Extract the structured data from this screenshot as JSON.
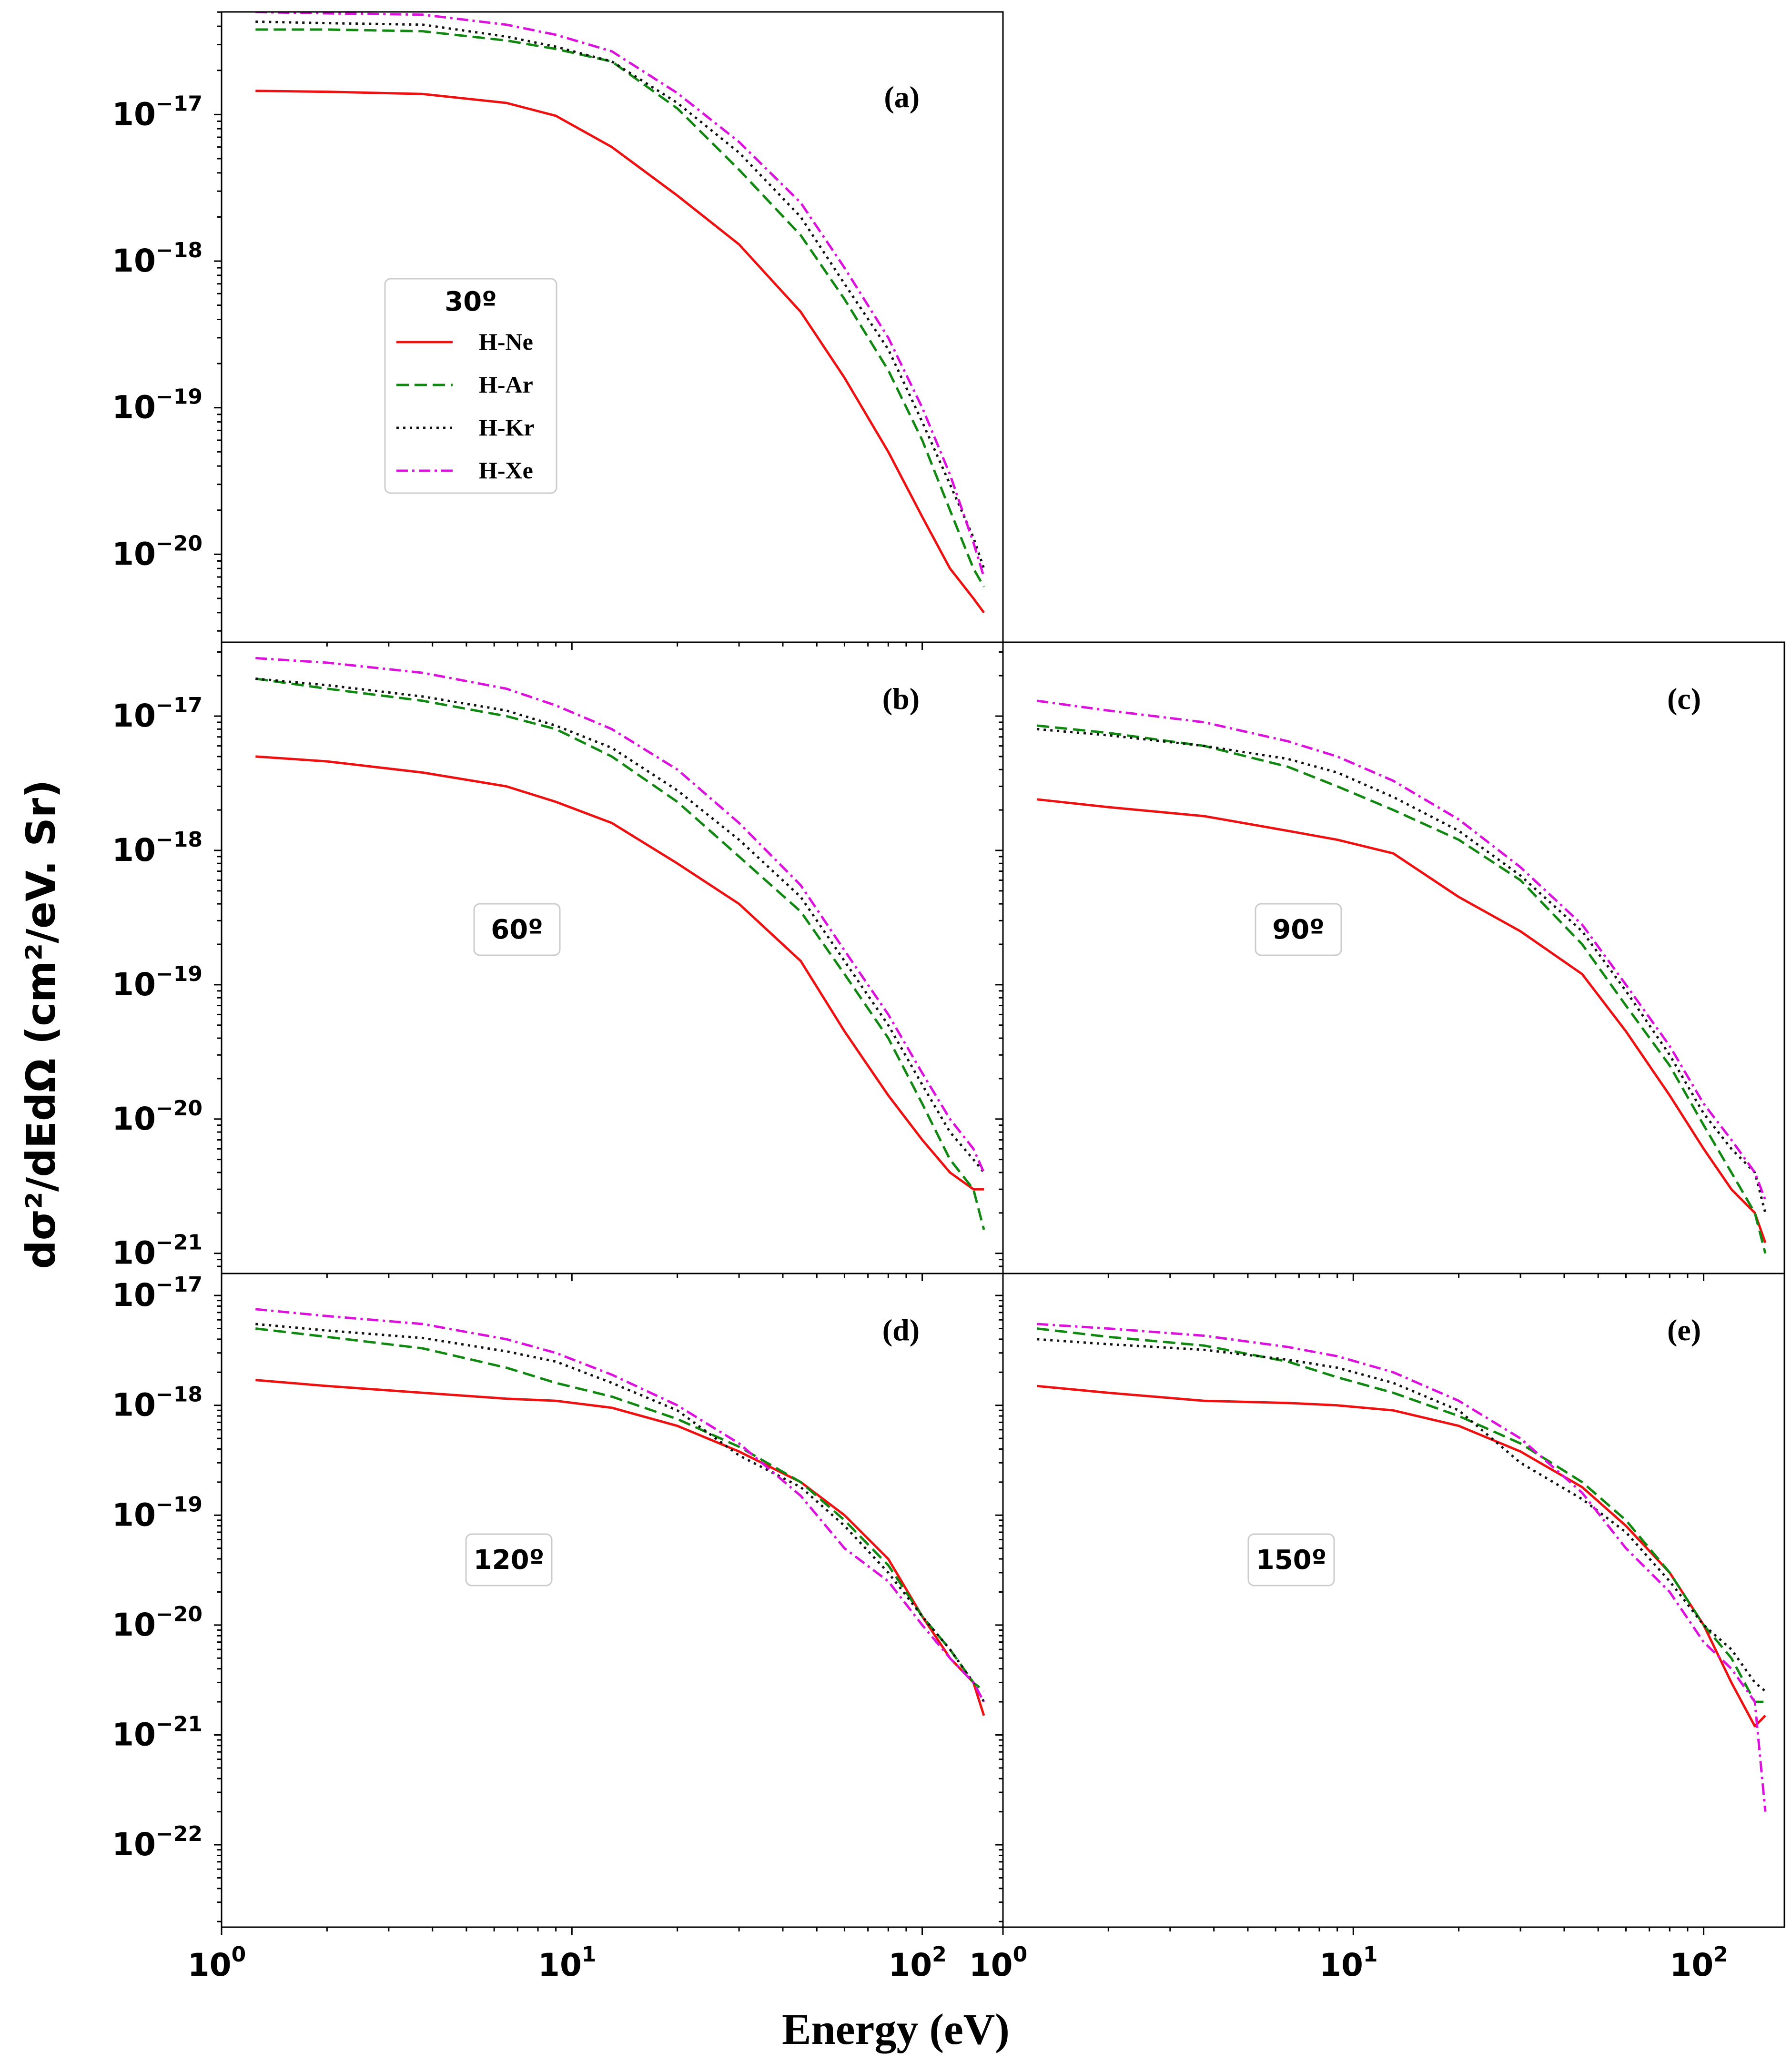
{
  "chart_data": {
    "type": "line",
    "ylabel": "dσ²/dEdΩ (cm²/eV. Sr)",
    "xlabel": "Energy (eV)",
    "xscale": "log",
    "yscale": "log",
    "xlim": [
      1,
      170
    ],
    "x_tick_labels": [
      {
        "base": "10",
        "exp": "0"
      },
      {
        "base": "10",
        "exp": "1"
      },
      {
        "base": "10",
        "exp": "2"
      }
    ],
    "legend": {
      "title": "30º",
      "entries": [
        "H-Ne",
        "H-Ar",
        "H-Kr",
        "H-Xe"
      ]
    },
    "series_styles": [
      {
        "name": "H-Ne",
        "color": "#ee1111",
        "dash": "solid"
      },
      {
        "name": "H-Ar",
        "color": "#118811",
        "dash": "dashed"
      },
      {
        "name": "H-Kr",
        "color": "#111111",
        "dash": "dotted"
      },
      {
        "name": "H-Xe",
        "color": "#dd11dd",
        "dash": "dashdot"
      }
    ],
    "x": [
      1.25,
      2,
      3.75,
      6.5,
      9,
      13,
      20,
      30,
      45,
      60,
      80,
      100,
      120,
      140,
      150
    ],
    "panels": [
      {
        "id": "a",
        "label": "(a)",
        "angle": "30º",
        "ylim_exp": [
          -20.6,
          -16.3
        ],
        "y_tick_labels": [
          {
            "base": "10",
            "exp": "−17"
          },
          {
            "base": "10",
            "exp": "−18"
          },
          {
            "base": "10",
            "exp": "−19"
          },
          {
            "base": "10",
            "exp": "−20"
          }
        ],
        "series": [
          {
            "name": "H-Ne",
            "values": [
              1.45e-17,
              1.43e-17,
              1.38e-17,
              1.2e-17,
              9.8e-18,
              6e-18,
              2.8e-18,
              1.3e-18,
              4.5e-19,
              1.6e-19,
              5e-20,
              1.8e-20,
              8e-21,
              5e-21,
              4e-21
            ]
          },
          {
            "name": "H-Ar",
            "values": [
              3.8e-17,
              3.8e-17,
              3.7e-17,
              3.2e-17,
              2.8e-17,
              2.3e-17,
              1.1e-17,
              4.2e-18,
              1.5e-18,
              5.5e-19,
              1.8e-19,
              6e-20,
              2e-20,
              8e-21,
              6e-21
            ]
          },
          {
            "name": "H-Kr",
            "values": [
              4.3e-17,
              4.2e-17,
              4.1e-17,
              3.4e-17,
              2.9e-17,
              2.3e-17,
              1.2e-17,
              5.5e-18,
              2e-18,
              7e-19,
              2.5e-19,
              8e-20,
              3e-20,
              1.3e-20,
              8e-21
            ]
          },
          {
            "name": "H-Xe",
            "values": [
              5e-17,
              4.9e-17,
              4.8e-17,
              4.1e-17,
              3.5e-17,
              2.7e-17,
              1.4e-17,
              6.5e-18,
              2.5e-18,
              9e-19,
              3e-19,
              1e-19,
              3.5e-20,
              1.2e-20,
              7e-21
            ]
          }
        ]
      },
      {
        "id": "b",
        "label": "(b)",
        "angle": "60º",
        "ylim_exp": [
          -21.15,
          -16.45
        ],
        "y_tick_labels": [
          {
            "base": "10",
            "exp": "−17"
          },
          {
            "base": "10",
            "exp": "−18"
          },
          {
            "base": "10",
            "exp": "−19"
          },
          {
            "base": "10",
            "exp": "−20"
          },
          {
            "base": "10",
            "exp": "−21"
          }
        ],
        "series": [
          {
            "name": "H-Ne",
            "values": [
              5e-18,
              4.6e-18,
              3.8e-18,
              3e-18,
              2.3e-18,
              1.6e-18,
              8e-19,
              4e-19,
              1.5e-19,
              4.5e-20,
              1.5e-20,
              7e-21,
              4e-21,
              3e-21,
              3e-21
            ]
          },
          {
            "name": "H-Ar",
            "values": [
              1.9e-17,
              1.6e-17,
              1.3e-17,
              1e-17,
              8e-18,
              5e-18,
              2.3e-18,
              9e-19,
              3.5e-19,
              1.2e-19,
              4e-20,
              1.3e-20,
              5e-21,
              3e-21,
              1.5e-21
            ]
          },
          {
            "name": "H-Kr",
            "values": [
              1.9e-17,
              1.7e-17,
              1.4e-17,
              1.1e-17,
              8.5e-18,
              5.8e-18,
              2.8e-18,
              1.2e-18,
              4.5e-19,
              1.5e-19,
              5e-20,
              1.8e-20,
              8e-21,
              5e-21,
              4e-21
            ]
          },
          {
            "name": "H-Xe",
            "values": [
              2.7e-17,
              2.5e-17,
              2.1e-17,
              1.6e-17,
              1.2e-17,
              8e-18,
              4e-18,
              1.6e-18,
              5.5e-19,
              1.8e-19,
              6e-20,
              2.2e-20,
              1e-20,
              6e-21,
              4e-21
            ]
          }
        ]
      },
      {
        "id": "c",
        "label": "(c)",
        "angle": "90º",
        "ylim_exp": [
          -21.15,
          -16.45
        ],
        "y_tick_labels": [],
        "series": [
          {
            "name": "H-Ne",
            "values": [
              2.4e-18,
              2.1e-18,
              1.8e-18,
              1.4e-18,
              1.2e-18,
              9.5e-19,
              4.5e-19,
              2.5e-19,
              1.2e-19,
              4.5e-20,
              1.5e-20,
              6e-21,
              3e-21,
              2e-21,
              1.2e-21
            ]
          },
          {
            "name": "H-Ar",
            "values": [
              8.5e-18,
              7.5e-18,
              6e-18,
              4.2e-18,
              3e-18,
              2e-18,
              1.2e-18,
              6e-19,
              2e-19,
              7e-20,
              2.5e-20,
              9e-21,
              4e-21,
              2e-21,
              1e-21
            ]
          },
          {
            "name": "H-Kr",
            "values": [
              8e-18,
              7.2e-18,
              6e-18,
              4.8e-18,
              3.8e-18,
              2.5e-18,
              1.4e-18,
              6.5e-19,
              2.5e-19,
              9e-20,
              3e-20,
              1.1e-20,
              6e-21,
              4e-21,
              2e-21
            ]
          },
          {
            "name": "H-Xe",
            "values": [
              1.3e-17,
              1.1e-17,
              9e-18,
              6.5e-18,
              5e-18,
              3.3e-18,
              1.7e-18,
              7.5e-19,
              2.8e-19,
              1e-19,
              3.5e-20,
              1.3e-20,
              7e-21,
              4e-21,
              2.5e-21
            ]
          }
        ]
      },
      {
        "id": "d",
        "label": "(d)",
        "angle": "120º",
        "ylim_exp": [
          -22.75,
          -16.8
        ],
        "y_tick_labels": [
          {
            "base": "10",
            "exp": "−17"
          },
          {
            "base": "10",
            "exp": "−18"
          },
          {
            "base": "10",
            "exp": "−19"
          },
          {
            "base": "10",
            "exp": "−20"
          },
          {
            "base": "10",
            "exp": "−21"
          },
          {
            "base": "10",
            "exp": "−22"
          }
        ],
        "series": [
          {
            "name": "H-Ne",
            "values": [
              1.7e-18,
              1.5e-18,
              1.3e-18,
              1.15e-18,
              1.1e-18,
              9.5e-19,
              6.5e-19,
              3.8e-19,
              2e-19,
              1e-19,
              4e-20,
              1.2e-20,
              5e-21,
              3e-21,
              1.5e-21
            ]
          },
          {
            "name": "H-Ar",
            "values": [
              5e-18,
              4.2e-18,
              3.3e-18,
              2.2e-18,
              1.6e-18,
              1.2e-18,
              7.5e-19,
              4.2e-19,
              2e-19,
              9e-20,
              3.5e-20,
              1.2e-20,
              6e-21,
              3e-21,
              2.5e-21
            ]
          },
          {
            "name": "H-Kr",
            "values": [
              5.5e-18,
              4.8e-18,
              4.1e-18,
              3.1e-18,
              2.5e-18,
              1.6e-18,
              9e-19,
              3.5e-19,
              1.8e-19,
              8e-20,
              3e-20,
              1.2e-20,
              6e-21,
              3e-21,
              2e-21
            ]
          },
          {
            "name": "H-Xe",
            "values": [
              7.5e-18,
              6.5e-18,
              5.5e-18,
              4e-18,
              3e-18,
              1.9e-18,
              1e-18,
              4.5e-19,
              1.5e-19,
              5e-20,
              2.5e-20,
              1e-20,
              5e-21,
              3e-21,
              2e-21
            ]
          }
        ]
      },
      {
        "id": "e",
        "label": "(e)",
        "angle": "150º",
        "ylim_exp": [
          -22.75,
          -16.8
        ],
        "y_tick_labels": [],
        "series": [
          {
            "name": "H-Ne",
            "values": [
              1.5e-18,
              1.3e-18,
              1.1e-18,
              1.05e-18,
              1e-18,
              9e-19,
              6.5e-19,
              3.8e-19,
              1.8e-19,
              8e-20,
              3e-20,
              1e-20,
              3e-21,
              1.2e-21,
              1.5e-21
            ]
          },
          {
            "name": "H-Ar",
            "values": [
              5e-18,
              4.2e-18,
              3.5e-18,
              2.5e-18,
              1.8e-18,
              1.3e-18,
              8e-19,
              4.5e-19,
              2e-19,
              9e-20,
              3e-20,
              1e-20,
              5e-21,
              2e-21,
              2e-21
            ]
          },
          {
            "name": "H-Kr",
            "values": [
              4e-18,
              3.6e-18,
              3.2e-18,
              2.6e-18,
              2.2e-18,
              1.6e-18,
              9e-19,
              3e-19,
              1.4e-19,
              7e-20,
              2.5e-20,
              1e-20,
              6e-21,
              3e-21,
              2.5e-21
            ]
          },
          {
            "name": "H-Xe",
            "values": [
              5.5e-18,
              5e-18,
              4.3e-18,
              3.4e-18,
              2.8e-18,
              2e-18,
              1.1e-18,
              5e-19,
              1.6e-19,
              5e-20,
              2e-20,
              7e-21,
              4e-21,
              2e-21,
              2e-22
            ]
          }
        ]
      }
    ]
  }
}
